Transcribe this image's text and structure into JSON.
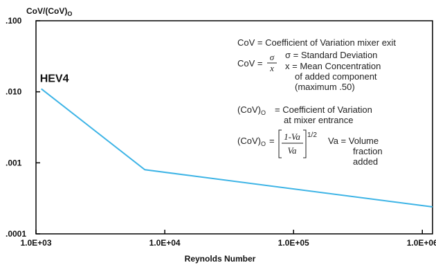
{
  "chart_data": {
    "type": "line",
    "ylabel": "CoV/(CoV)",
    "ylabel_subscript": "O",
    "xlabel": "Reynolds Number",
    "x_scale": "log",
    "y_scale": "log",
    "xlim": [
      1000,
      1200000
    ],
    "ylim": [
      0.0001,
      0.1
    ],
    "x_ticks": [
      1000,
      10000,
      100000,
      1000000
    ],
    "x_tick_labels": [
      "1.0E+03",
      "1.0E+04",
      "1.0E+05",
      "1.0E+06"
    ],
    "y_ticks": [
      0.1,
      0.01,
      0.001,
      0.0001
    ],
    "y_tick_labels": [
      ".100",
      ".010",
      ".001",
      ".0001"
    ],
    "grid": false,
    "colors": {
      "line": "#3db4e6",
      "frame": "#000000",
      "text": "#111111"
    },
    "series": [
      {
        "name": "HEV4",
        "x": [
          1100,
          7000,
          1200000
        ],
        "y": [
          0.011,
          0.0008,
          0.00024
        ]
      }
    ],
    "annotations": {
      "cov_def": "CoV = Coefficient of Variation mixer exit",
      "cov_eq_lhs": "CoV =",
      "sigma": "σ",
      "x_var": "x",
      "sigma_def": "σ = Standard Deviation",
      "x_def_line1": "x = Mean Concentration",
      "x_def_line2": "of added component",
      "x_def_line3": "(maximum .50)",
      "cov0_lhs": "(CoV)",
      "cov0_sub": "O",
      "cov0_def_line1": "= Coefficient of Variation",
      "cov0_def_line2": "at mixer entrance",
      "formula_lhs": "(CoV)",
      "formula_sub": "O",
      "formula_eq": "=",
      "formula_num": "1-Va",
      "formula_den": "Va",
      "formula_exp": "1/2",
      "va_def_line1": "Va = Volume",
      "va_def_line2": "fraction",
      "va_def_line3": "added"
    }
  }
}
